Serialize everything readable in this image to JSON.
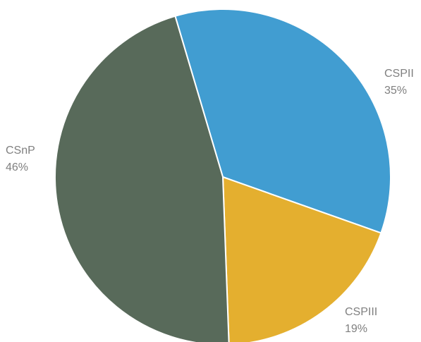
{
  "chart_data": {
    "type": "pie",
    "categories": [
      "CSPII",
      "CSPIII",
      "CSnP"
    ],
    "values": [
      35,
      19,
      46
    ],
    "labels": [
      "35%",
      "19%",
      "46%"
    ],
    "colors": [
      "#419dd1",
      "#e4af2f",
      "#586a5a"
    ],
    "label_color": "#7f7f7f"
  }
}
